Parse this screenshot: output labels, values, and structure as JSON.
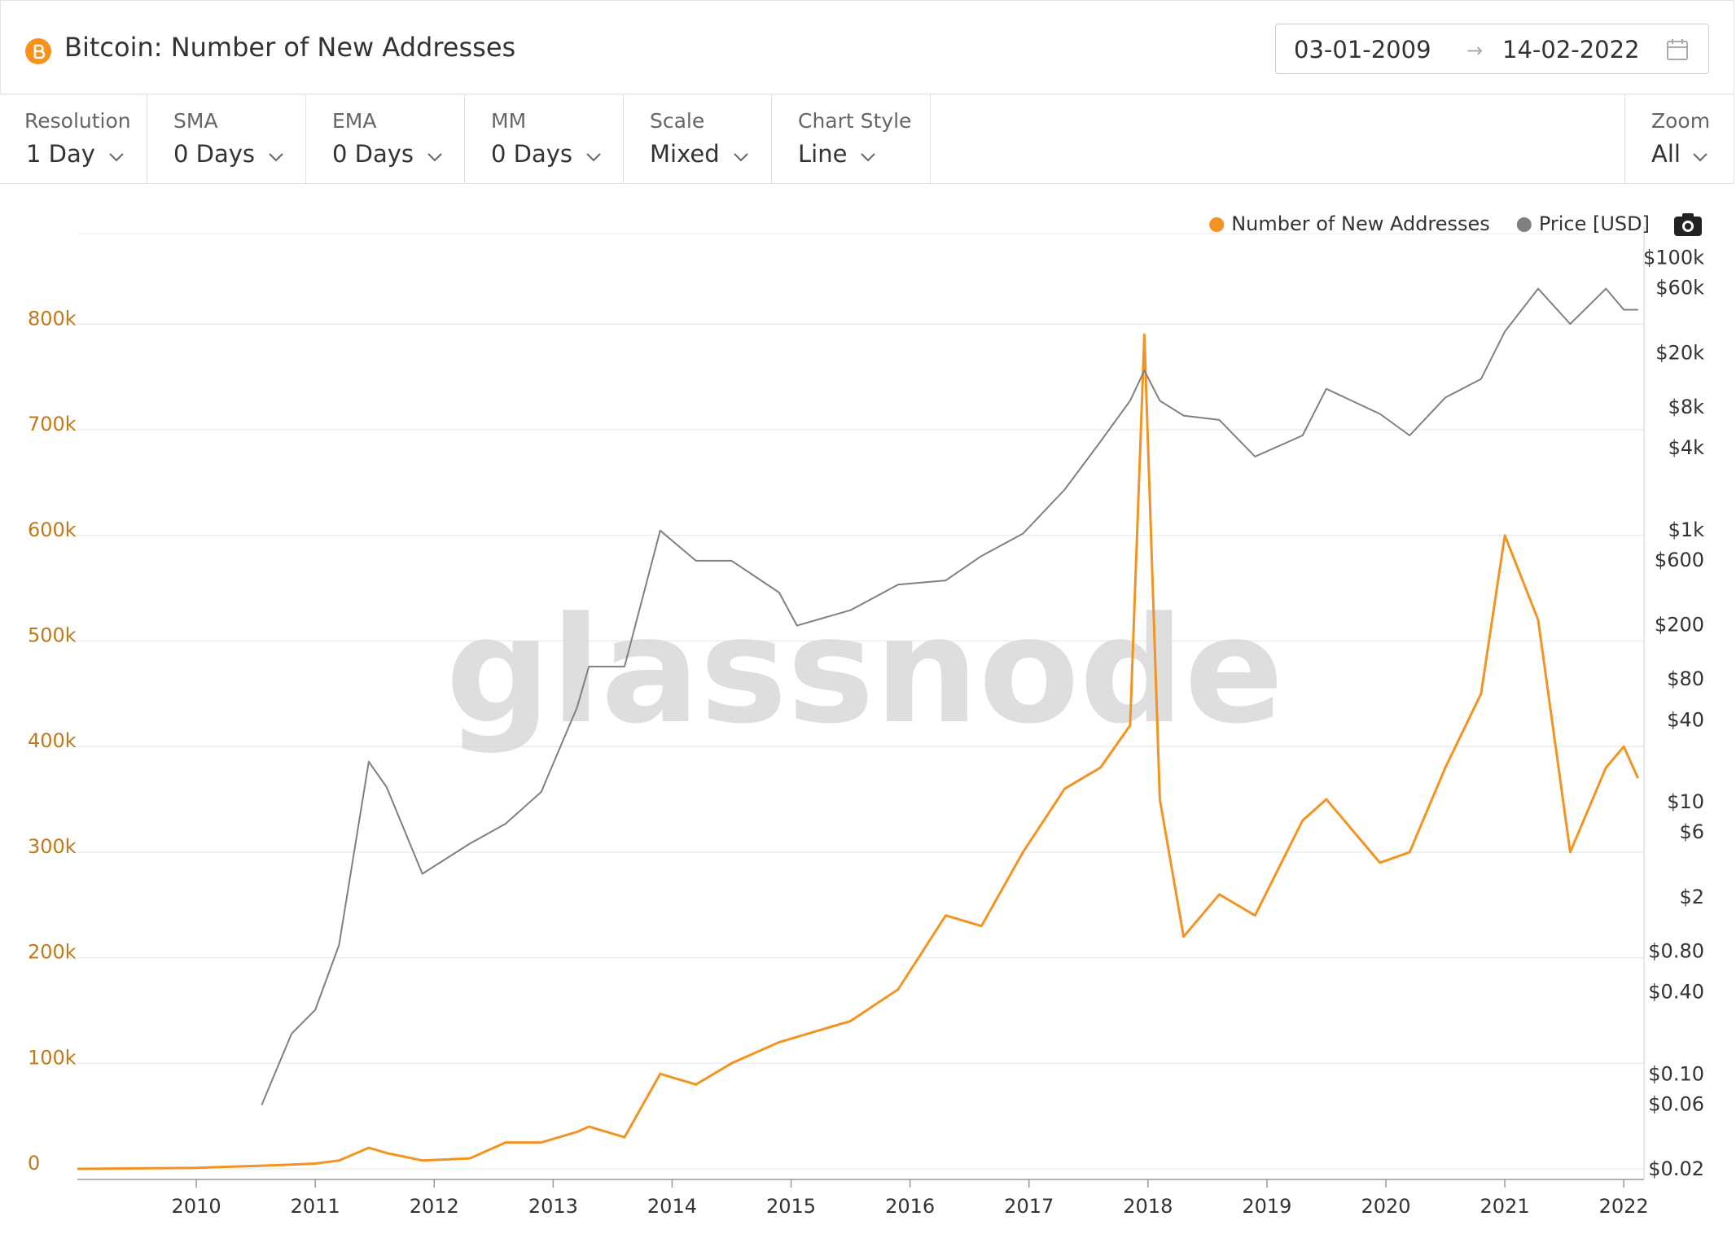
{
  "header": {
    "title": "Bitcoin: Number of New Addresses",
    "date_from": "03-01-2009",
    "date_arrow": "→",
    "date_to": "14-02-2022"
  },
  "controls": [
    {
      "label": "Resolution",
      "value": "1 Day"
    },
    {
      "label": "SMA",
      "value": "0 Days"
    },
    {
      "label": "EMA",
      "value": "0 Days"
    },
    {
      "label": "MM",
      "value": "0 Days"
    },
    {
      "label": "Scale",
      "value": "Mixed"
    },
    {
      "label": "Chart Style",
      "value": "Line"
    }
  ],
  "zoom": {
    "label": "Zoom",
    "value": "All"
  },
  "chart_data": {
    "type": "line",
    "watermark": "glassnode",
    "x": [
      2009.0,
      2010.0,
      2010.55,
      2010.8,
      2011.0,
      2011.2,
      2011.45,
      2011.6,
      2011.9,
      2012.3,
      2012.6,
      2012.9,
      2013.2,
      2013.3,
      2013.6,
      2013.9,
      2014.2,
      2014.5,
      2014.9,
      2015.05,
      2015.5,
      2015.9,
      2016.3,
      2016.6,
      2016.95,
      2017.3,
      2017.6,
      2017.85,
      2017.97,
      2018.1,
      2018.3,
      2018.6,
      2018.9,
      2019.3,
      2019.5,
      2019.95,
      2020.2,
      2020.5,
      2020.8,
      2021.0,
      2021.28,
      2021.55,
      2021.85,
      2022.0,
      2022.12
    ],
    "series": [
      {
        "name": "Number of New Addresses",
        "color": "#f39322",
        "values": [
          0,
          1000,
          3000,
          4000,
          5000,
          8000,
          20000,
          15000,
          8000,
          10000,
          25000,
          25000,
          35000,
          40000,
          30000,
          90000,
          80000,
          100000,
          120000,
          125000,
          140000,
          170000,
          240000,
          230000,
          300000,
          360000,
          380000,
          420000,
          790000,
          350000,
          220000,
          260000,
          240000,
          330000,
          350000,
          290000,
          300000,
          380000,
          450000,
          600000,
          520000,
          300000,
          380000,
          400000,
          370000
        ]
      },
      {
        "name": "Price [USD]",
        "color": "#808080",
        "axis": "y2",
        "values": [
          null,
          null,
          0.06,
          0.2,
          0.3,
          0.9,
          20,
          13,
          3,
          5,
          7,
          12,
          50,
          100,
          100,
          1000,
          600,
          600,
          350,
          200,
          260,
          400,
          430,
          650,
          950,
          2000,
          4500,
          9000,
          15000,
          9000,
          7000,
          6500,
          3500,
          5000,
          11000,
          7200,
          5000,
          9500,
          13000,
          29000,
          60000,
          33000,
          60000,
          42000,
          42000
        ]
      }
    ],
    "xlim": [
      2009.0,
      2022.17
    ],
    "xticks": [
      2010,
      2011,
      2012,
      2013,
      2014,
      2015,
      2016,
      2017,
      2018,
      2019,
      2020,
      2021,
      2022
    ],
    "ylim": [
      -10000,
      892000
    ],
    "yticks": [
      0,
      {
        "value": 100000,
        "label": "100k"
      },
      {
        "value": 200000,
        "label": "200k"
      },
      {
        "value": 300000,
        "label": "300k"
      },
      {
        "value": 400000,
        "label": "400k"
      },
      {
        "value": 500000,
        "label": "500k"
      },
      {
        "value": 600000,
        "label": "600k"
      },
      {
        "value": 700000,
        "label": "700k"
      },
      {
        "value": 800000,
        "label": "800k"
      }
    ],
    "y2lim": [
      0.017,
      170000
    ],
    "y2scale": "log",
    "y2ticks": [
      {
        "value": 100000,
        "label": "$100k"
      },
      {
        "value": 60000,
        "label": "$60k"
      },
      {
        "value": 20000,
        "label": "$20k"
      },
      {
        "value": 8000,
        "label": "$8k"
      },
      {
        "value": 4000,
        "label": "$4k"
      },
      {
        "value": 1000,
        "label": "$1k"
      },
      {
        "value": 600,
        "label": "$600"
      },
      {
        "value": 200,
        "label": "$200"
      },
      {
        "value": 80,
        "label": "$80"
      },
      {
        "value": 40,
        "label": "$40"
      },
      {
        "value": 10,
        "label": "$10"
      },
      {
        "value": 6,
        "label": "$6"
      },
      {
        "value": 2,
        "label": "$2"
      },
      {
        "value": 0.8,
        "label": "$0.80"
      },
      {
        "value": 0.4,
        "label": "$0.40"
      },
      {
        "value": 0.1,
        "label": "$0.10"
      },
      {
        "value": 0.06,
        "label": "$0.06"
      },
      {
        "value": 0.02,
        "label": "$0.02"
      }
    ],
    "grid": true,
    "legend": "top-right"
  }
}
